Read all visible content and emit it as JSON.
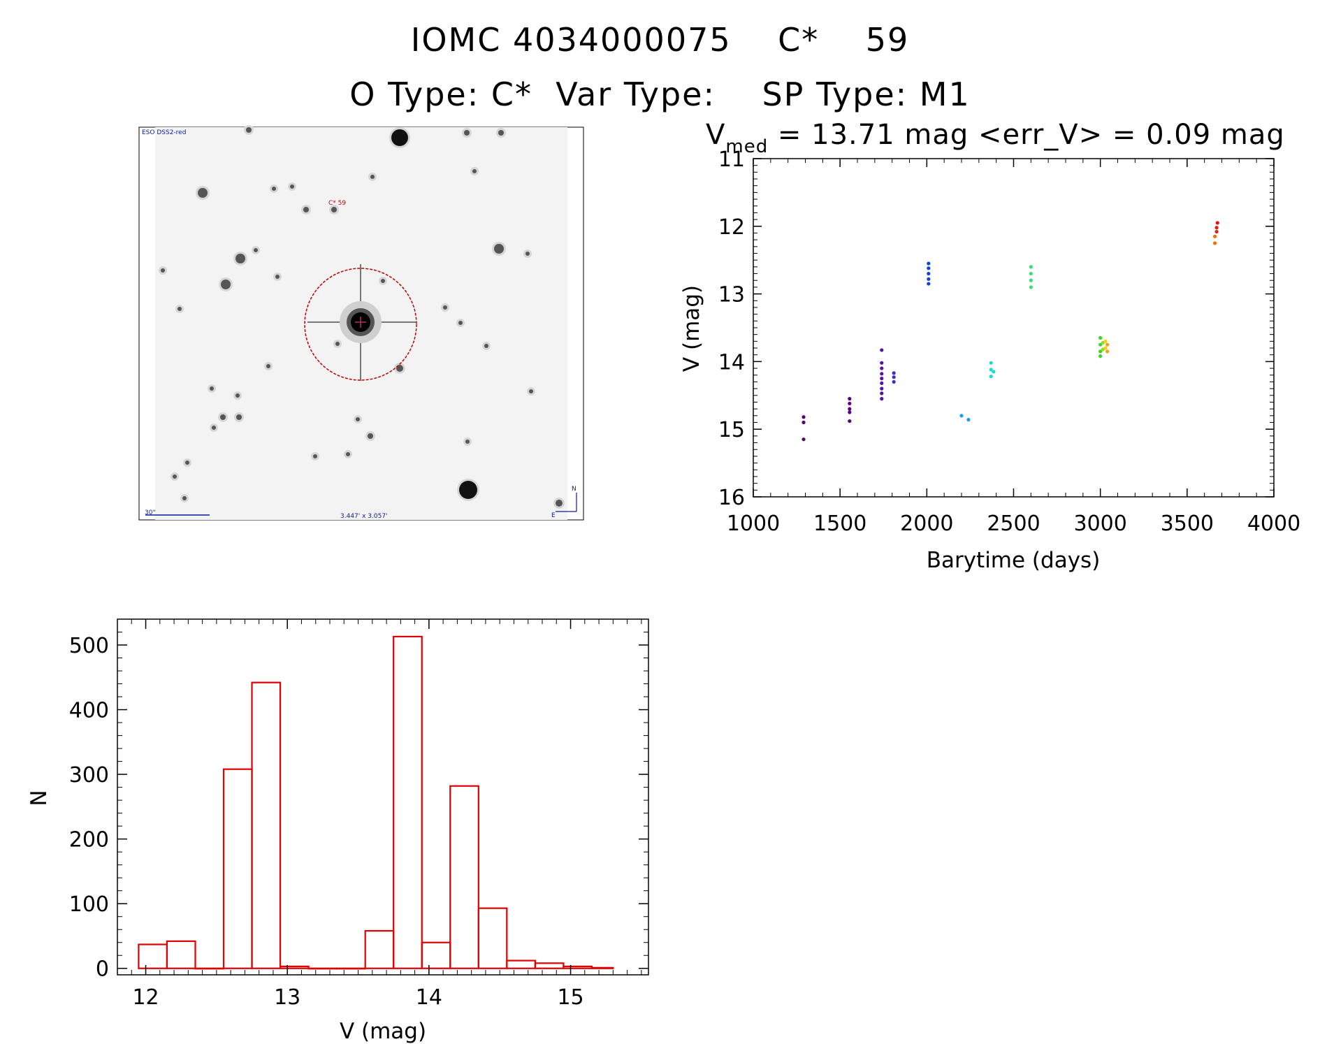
{
  "header": {
    "title_line1": "IOMC 4034000075    C*    59",
    "title_line2": "O Type: C*  Var Type:    SP Type: M1"
  },
  "finder": {
    "survey_label": "ESO DSS2-red",
    "target_label": "C* 59",
    "scale_label": "30\"",
    "fov_label": "3.447' x 3.057'",
    "north_label": "N",
    "east_label": "E"
  },
  "chart_data": [
    {
      "type": "scatter",
      "header_prefix": "V",
      "header_subscript": "med",
      "header_rest": " = 13.71 mag <err_V> = 0.09 mag",
      "xlabel": "Barytime (days)",
      "ylabel": "V (mag)",
      "xlim": [
        1000,
        4000
      ],
      "ylim": [
        16,
        11
      ],
      "y_inverted": true,
      "xticks": [
        1000,
        1500,
        2000,
        2500,
        3000,
        3500,
        4000
      ],
      "yticks": [
        11,
        12,
        13,
        14,
        15,
        16
      ],
      "color_by": "time (violet to red)",
      "points": [
        {
          "x": 1290,
          "y": 14.82,
          "color": "#5a0070"
        },
        {
          "x": 1290,
          "y": 14.9,
          "color": "#5a0070"
        },
        {
          "x": 1290,
          "y": 15.15,
          "color": "#5a0070"
        },
        {
          "x": 1555,
          "y": 14.55,
          "color": "#5c0080"
        },
        {
          "x": 1555,
          "y": 14.62,
          "color": "#5c0080"
        },
        {
          "x": 1555,
          "y": 14.7,
          "color": "#5c0080"
        },
        {
          "x": 1555,
          "y": 14.75,
          "color": "#5c0080"
        },
        {
          "x": 1555,
          "y": 14.88,
          "color": "#5c0080"
        },
        {
          "x": 1740,
          "y": 13.83,
          "color": "#5a10a0"
        },
        {
          "x": 1740,
          "y": 14.02,
          "color": "#5a10a0"
        },
        {
          "x": 1740,
          "y": 14.1,
          "color": "#5a10a0"
        },
        {
          "x": 1740,
          "y": 14.18,
          "color": "#5a10a0"
        },
        {
          "x": 1740,
          "y": 14.25,
          "color": "#5a10a0"
        },
        {
          "x": 1740,
          "y": 14.32,
          "color": "#5a10a0"
        },
        {
          "x": 1740,
          "y": 14.4,
          "color": "#5a10a0"
        },
        {
          "x": 1740,
          "y": 14.47,
          "color": "#5a10a0"
        },
        {
          "x": 1740,
          "y": 14.55,
          "color": "#5a10a0"
        },
        {
          "x": 1810,
          "y": 14.17,
          "color": "#3a30c8"
        },
        {
          "x": 1810,
          "y": 14.23,
          "color": "#3a30c8"
        },
        {
          "x": 1810,
          "y": 14.3,
          "color": "#3a30c8"
        },
        {
          "x": 2010,
          "y": 12.55,
          "color": "#1040e0"
        },
        {
          "x": 2010,
          "y": 12.62,
          "color": "#1040e0"
        },
        {
          "x": 2010,
          "y": 12.7,
          "color": "#1040e0"
        },
        {
          "x": 2010,
          "y": 12.78,
          "color": "#1040e0"
        },
        {
          "x": 2010,
          "y": 12.85,
          "color": "#1040e0"
        },
        {
          "x": 2200,
          "y": 14.8,
          "color": "#10a0f0"
        },
        {
          "x": 2240,
          "y": 14.86,
          "color": "#10a0f0"
        },
        {
          "x": 2370,
          "y": 14.02,
          "color": "#20d8d0"
        },
        {
          "x": 2370,
          "y": 14.12,
          "color": "#20d8d0"
        },
        {
          "x": 2370,
          "y": 14.22,
          "color": "#20d8d0"
        },
        {
          "x": 2385,
          "y": 14.15,
          "color": "#20d8d0"
        },
        {
          "x": 2600,
          "y": 12.6,
          "color": "#30e070"
        },
        {
          "x": 2600,
          "y": 12.7,
          "color": "#30e070"
        },
        {
          "x": 2600,
          "y": 12.8,
          "color": "#30e070"
        },
        {
          "x": 2600,
          "y": 12.9,
          "color": "#30e070"
        },
        {
          "x": 3000,
          "y": 13.65,
          "color": "#40d030"
        },
        {
          "x": 3000,
          "y": 13.75,
          "color": "#40d030"
        },
        {
          "x": 3000,
          "y": 13.85,
          "color": "#40d030"
        },
        {
          "x": 3000,
          "y": 13.92,
          "color": "#40d030"
        },
        {
          "x": 3015,
          "y": 13.72,
          "color": "#90e020"
        },
        {
          "x": 3015,
          "y": 13.82,
          "color": "#90e020"
        },
        {
          "x": 3030,
          "y": 13.7,
          "color": "#f0d020"
        },
        {
          "x": 3030,
          "y": 13.8,
          "color": "#f0d020"
        },
        {
          "x": 3040,
          "y": 13.75,
          "color": "#f0a020"
        },
        {
          "x": 3040,
          "y": 13.85,
          "color": "#f0a020"
        },
        {
          "x": 3660,
          "y": 12.25,
          "color": "#f07010"
        },
        {
          "x": 3660,
          "y": 12.15,
          "color": "#f07010"
        },
        {
          "x": 3670,
          "y": 12.02,
          "color": "#e02010"
        },
        {
          "x": 3670,
          "y": 12.08,
          "color": "#e02010"
        },
        {
          "x": 3675,
          "y": 11.95,
          "color": "#e01010"
        }
      ]
    },
    {
      "type": "bar",
      "subtype": "histogram",
      "xlabel": "V (mag)",
      "ylabel": "N",
      "xlim": [
        11.8,
        15.55
      ],
      "ylim": [
        -10,
        540
      ],
      "xticks": [
        12,
        13,
        14,
        15
      ],
      "yticks": [
        0,
        100,
        200,
        300,
        400,
        500
      ],
      "bar_color": "#e00000",
      "bin_width": 0.2,
      "bin_edges": [
        11.95,
        12.15,
        12.35,
        12.55,
        12.75,
        12.95,
        13.15,
        13.35,
        13.55,
        13.75,
        13.95,
        14.15,
        14.35,
        14.55,
        14.75,
        14.95,
        15.15,
        15.3
      ],
      "values": [
        37,
        42,
        0,
        308,
        442,
        3,
        0,
        0,
        58,
        513,
        40,
        282,
        93,
        12,
        8,
        3,
        1
      ]
    }
  ]
}
